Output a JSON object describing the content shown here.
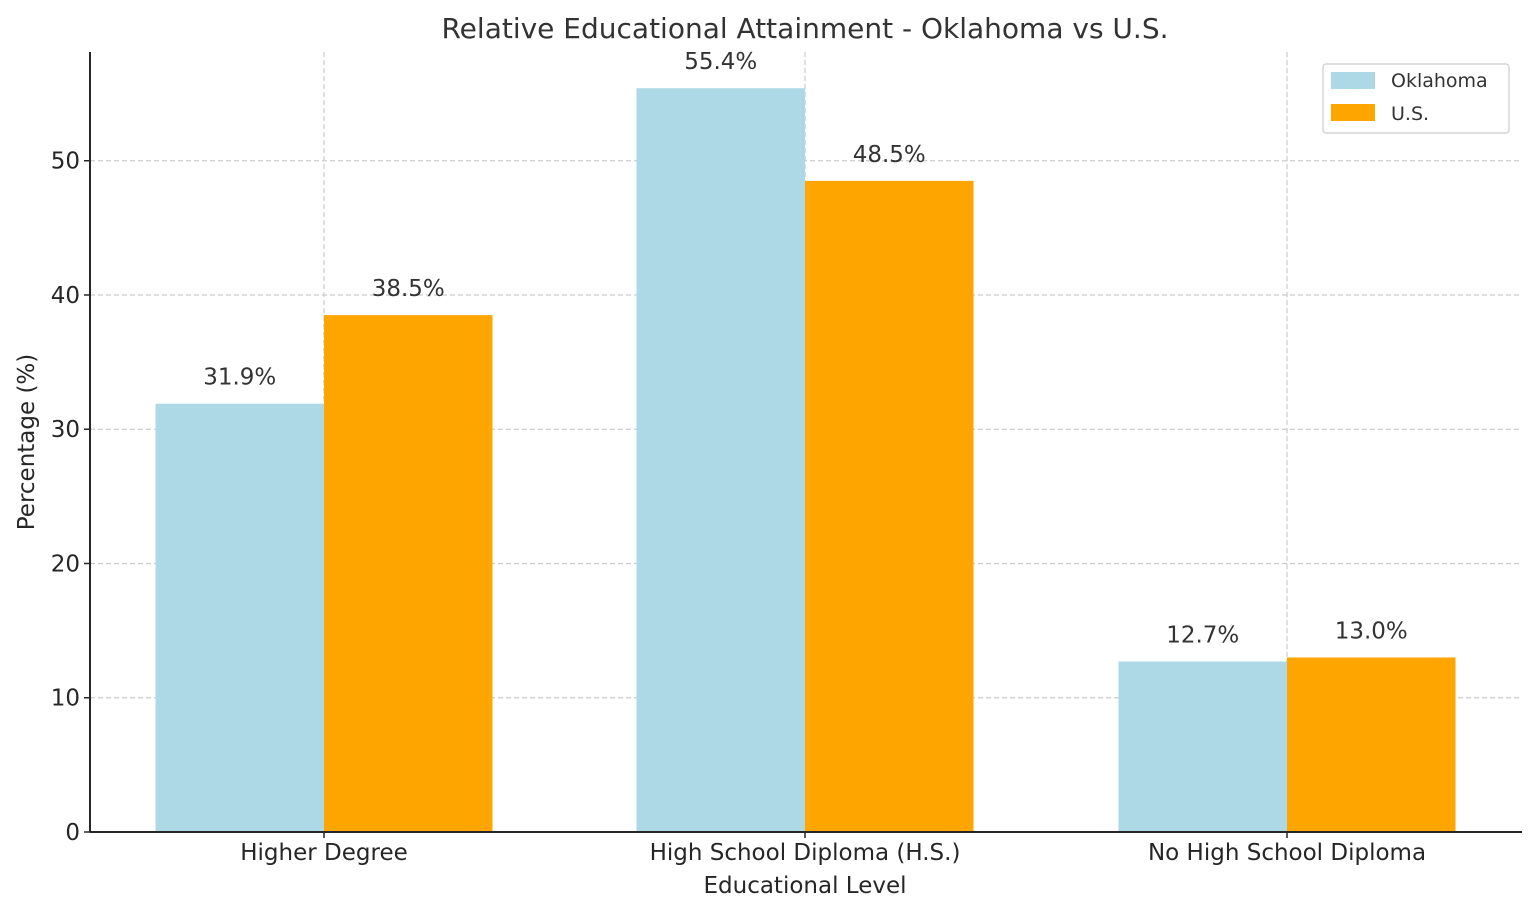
{
  "chart_data": {
    "type": "bar",
    "title": "Relative Educational Attainment - Oklahoma vs U.S.",
    "xlabel": "Educational Level",
    "ylabel": "Percentage (%)",
    "categories": [
      "Higher Degree",
      "High School Diploma (H.S.)",
      "No High School Diploma"
    ],
    "series": [
      {
        "name": "Oklahoma",
        "color": "#add8e6",
        "values": [
          31.9,
          55.4,
          12.7
        ],
        "labels": [
          "31.9%",
          "55.4%",
          "12.7%"
        ]
      },
      {
        "name": "U.S.",
        "color": "#ffa500",
        "values": [
          38.5,
          48.5,
          13.0
        ],
        "labels": [
          "38.5%",
          "48.5%",
          "13.0%"
        ]
      }
    ],
    "yticks": [
      0,
      10,
      20,
      30,
      40,
      50
    ],
    "ylim": [
      0,
      58.1
    ],
    "grid": true,
    "legend_position": "upper right"
  }
}
